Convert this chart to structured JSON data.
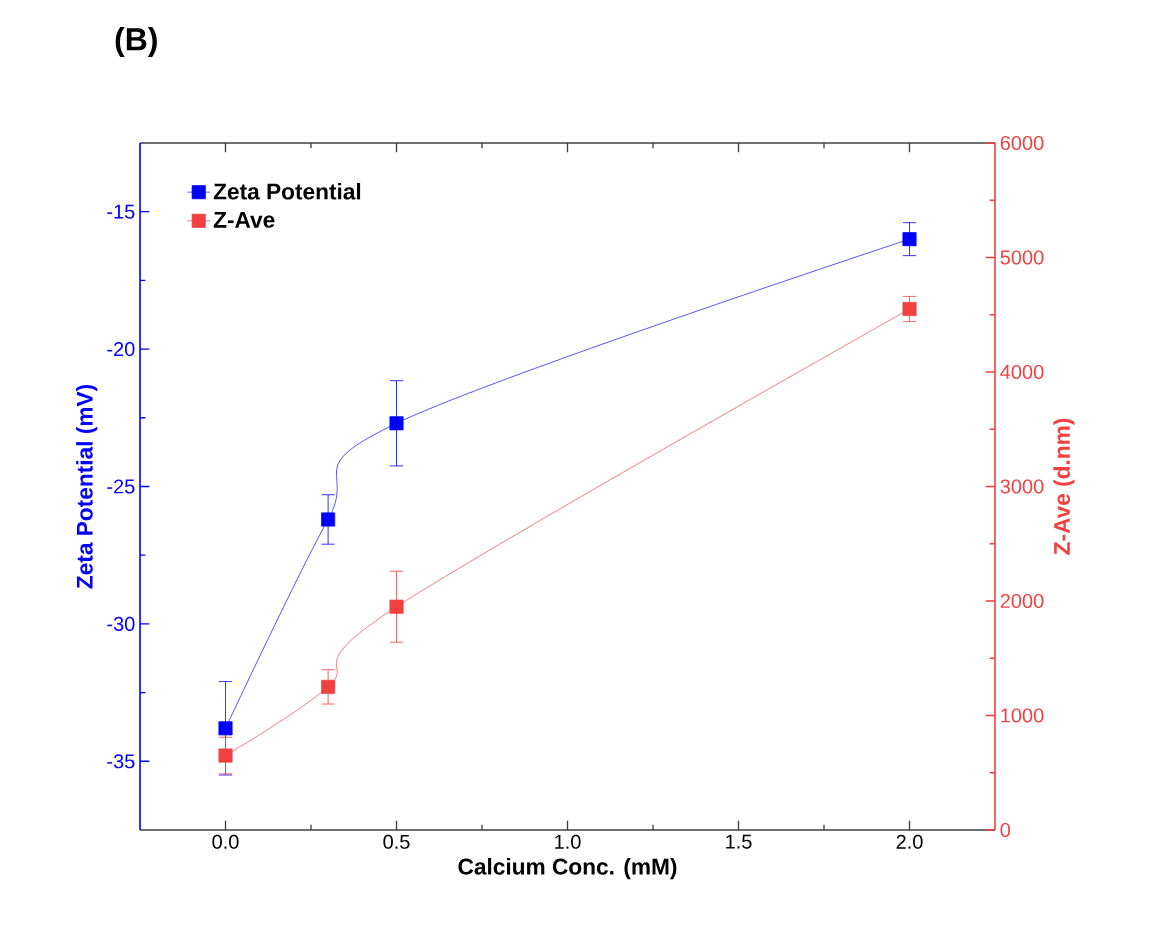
{
  "chart_data": {
    "type": "line",
    "title": "(B)",
    "xlabel": "Calcium Conc. (mM)",
    "ylabel": "Zeta Potential (mV)",
    "y2label": "Z-Ave (d.nm)",
    "x": [
      0,
      0.3,
      0.5,
      2.0
    ],
    "series": [
      {
        "name": "Zeta Potential",
        "color": "#0000ff",
        "values": [
          -33.8,
          -26.2,
          -22.7,
          -16.0
        ],
        "errors": [
          1.7,
          0.9,
          1.55,
          0.6
        ]
      },
      {
        "name": "Z-Ave",
        "color": "#f04040",
        "axis": "y2",
        "values": [
          650,
          1250,
          1950,
          4550
        ],
        "errors": [
          160,
          150,
          310,
          110
        ]
      }
    ],
    "xlim": [
      -0.25,
      2.25
    ],
    "xticks": [
      {
        "value": 0,
        "label": "0.0"
      },
      {
        "value": 0.5,
        "label": "0.5"
      },
      {
        "value": 1,
        "label": "1.0"
      },
      {
        "value": 1.5,
        "label": "1.5"
      },
      {
        "value": 2,
        "label": "2.0"
      }
    ],
    "ylim": [
      -37.5,
      -12.5
    ],
    "yticks": [
      -35,
      -30,
      -25,
      -20,
      -15
    ],
    "y2lim": [
      0,
      6000
    ],
    "y2ticks": [
      0,
      1000,
      2000,
      3000,
      4000,
      5000,
      6000
    ],
    "marker": "square",
    "legend": "top left"
  }
}
